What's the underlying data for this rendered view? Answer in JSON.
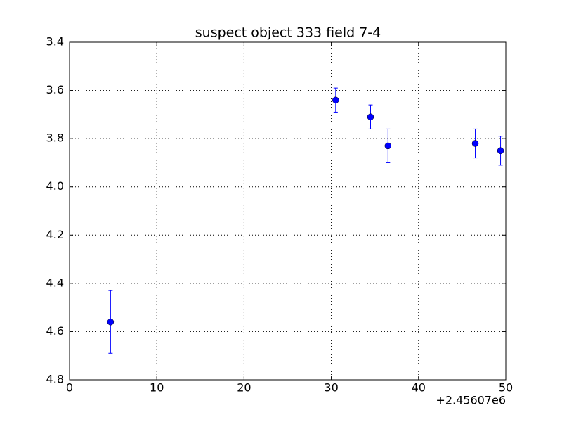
{
  "chart_data": {
    "type": "errorbar",
    "title": "suspect object 333 field 7-4",
    "x": [
      4.7,
      30.5,
      34.5,
      36.5,
      46.5,
      49.4
    ],
    "values": [
      4.56,
      3.64,
      3.71,
      3.83,
      3.82,
      3.85
    ],
    "errors": [
      0.13,
      0.05,
      0.05,
      0.07,
      0.06,
      0.06
    ],
    "color": "#0000ff",
    "xlim": [
      0,
      50
    ],
    "xticks": [
      0,
      10,
      20,
      30,
      40,
      50
    ],
    "x_offset_label": "+2.45607e6",
    "ylim": [
      3.4,
      4.8
    ],
    "y_inverted": true,
    "yticks": [
      3.4,
      3.6,
      3.8,
      {
        "value": 4.0,
        "label": "4.0"
      },
      4.2,
      4.4,
      4.6,
      4.8
    ],
    "grid": true
  }
}
